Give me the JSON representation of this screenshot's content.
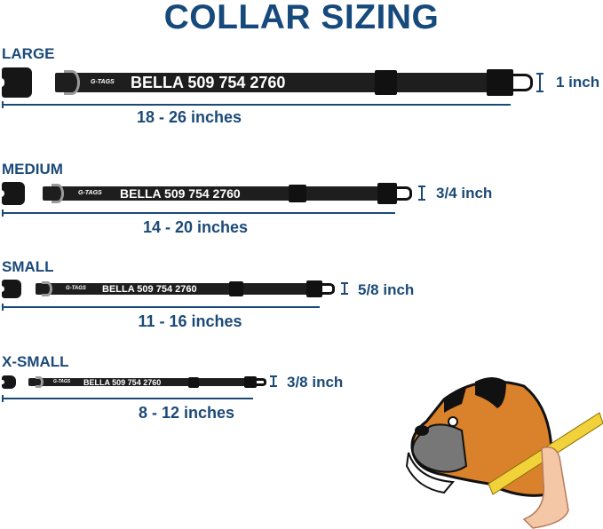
{
  "title": "COLLAR SIZING",
  "collar_text": "BELLA 509 754 2760",
  "brand_logo": "G-TAGS",
  "sizes": [
    {
      "name": "LARGE",
      "length": "18 - 26 inches",
      "width": "1 inch"
    },
    {
      "name": "MEDIUM",
      "length": "14 - 20 inches",
      "width": "3/4 inch"
    },
    {
      "name": "SMALL",
      "length": "11 - 16 inches",
      "width": "5/8 inch"
    },
    {
      "name": "X-SMALL",
      "length": "8 - 12 inches",
      "width": "3/8 inch"
    }
  ],
  "colors": {
    "text": "#1b4a78",
    "strap": "#1e1e1e",
    "dog": "#d9822b",
    "tape": "#f2d23a"
  }
}
